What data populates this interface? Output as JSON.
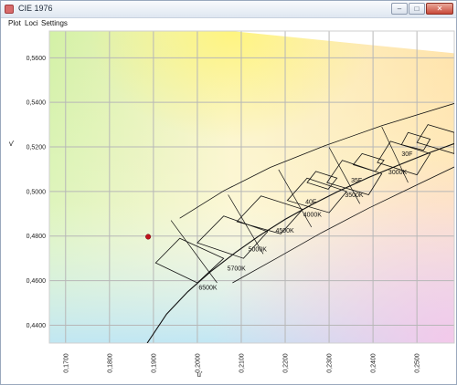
{
  "window": {
    "title": "CIE 1976",
    "minimize_glyph": "–",
    "maximize_glyph": "□",
    "close_glyph": "✕"
  },
  "menu": {
    "items": [
      "Plot",
      "Loci",
      "Settings"
    ]
  },
  "icons": {
    "app": "cie-app-icon",
    "minimize": "minimize-icon",
    "maximize": "maximize-icon",
    "close": "close-icon"
  },
  "chart_data": {
    "type": "scatter",
    "xlabel": "u'",
    "ylabel": "v'",
    "xlim": [
      0.1663,
      0.2585
    ],
    "ylim": [
      0.432,
      0.572
    ],
    "x_ticks": [
      "0,1700",
      "0,1800",
      "0,1900",
      "0,2000",
      "0,2100",
      "0,2200",
      "0,2300",
      "0,2400",
      "0,2500"
    ],
    "y_ticks": [
      "0,4400",
      "0,4600",
      "0,4800",
      "0,5000",
      "0,5200",
      "0,5400",
      "0,5600"
    ],
    "grid": true,
    "locus_label_precision": 4,
    "point": {
      "u": 0.1888,
      "v": 0.4797,
      "color": "#c0141c"
    },
    "planckian_locus": [
      [
        0.1886,
        0.432
      ],
      [
        0.193,
        0.445
      ],
      [
        0.1978,
        0.455
      ],
      [
        0.203,
        0.464
      ],
      [
        0.2086,
        0.4725
      ],
      [
        0.214,
        0.48
      ],
      [
        0.22,
        0.4875
      ],
      [
        0.226,
        0.494
      ],
      [
        0.232,
        0.5
      ],
      [
        0.239,
        0.5063
      ],
      [
        0.246,
        0.512
      ],
      [
        0.253,
        0.5175
      ],
      [
        0.2585,
        0.5215
      ]
    ],
    "band_upper": [
      [
        0.196,
        0.488
      ],
      [
        0.206,
        0.5003
      ],
      [
        0.2166,
        0.5108
      ],
      [
        0.229,
        0.5205
      ],
      [
        0.242,
        0.5295
      ],
      [
        0.2585,
        0.5395
      ]
    ],
    "band_lower": [
      [
        0.208,
        0.459
      ],
      [
        0.218,
        0.47
      ],
      [
        0.228,
        0.4812
      ],
      [
        0.239,
        0.4925
      ],
      [
        0.25,
        0.503
      ],
      [
        0.2585,
        0.511
      ]
    ],
    "isotherms": [
      [
        [
          0.194,
          0.487
        ],
        [
          0.2045,
          0.459
        ]
      ],
      [
        [
          0.207,
          0.4985
        ],
        [
          0.215,
          0.472
        ]
      ],
      [
        [
          0.2185,
          0.5098
        ],
        [
          0.226,
          0.484
        ]
      ],
      [
        [
          0.23,
          0.5198
        ],
        [
          0.237,
          0.4945
        ]
      ],
      [
        [
          0.242,
          0.529
        ],
        [
          0.248,
          0.504
        ]
      ]
    ],
    "cct_boxes": [
      {
        "label": "6500K",
        "quad": [
          [
            0.196,
            0.479
          ],
          [
            0.206,
            0.47
          ],
          [
            0.2,
            0.459
          ],
          [
            0.1905,
            0.468
          ]
        ]
      },
      {
        "label": "5700K",
        "quad": [
          [
            0.206,
            0.489
          ],
          [
            0.216,
            0.482
          ],
          [
            0.2105,
            0.47
          ],
          [
            0.2,
            0.477
          ]
        ]
      },
      {
        "label": "5000K",
        "quad": [
          [
            0.2145,
            0.498
          ],
          [
            0.224,
            0.492
          ],
          [
            0.219,
            0.481
          ],
          [
            0.209,
            0.4865
          ]
        ]
      },
      {
        "label": "4500K",
        "quad": [
          [
            0.225,
            0.506
          ],
          [
            0.234,
            0.5
          ],
          [
            0.23,
            0.4905
          ],
          [
            0.2205,
            0.496
          ]
        ]
      },
      {
        "label": "40F",
        "quad": [
          [
            0.227,
            0.509
          ],
          [
            0.2318,
            0.506
          ],
          [
            0.2298,
            0.501
          ],
          [
            0.225,
            0.504
          ]
        ]
      },
      {
        "label": "4000K",
        "quad": [
          [
            0.233,
            0.514
          ],
          [
            0.242,
            0.508
          ],
          [
            0.239,
            0.4985
          ],
          [
            0.2295,
            0.504
          ]
        ]
      },
      {
        "label": "35F",
        "quad": [
          [
            0.2375,
            0.517
          ],
          [
            0.2425,
            0.514
          ],
          [
            0.2405,
            0.509
          ],
          [
            0.2355,
            0.512
          ]
        ]
      },
      {
        "label": "3500K",
        "quad": [
          [
            0.244,
            0.5225
          ],
          [
            0.253,
            0.517
          ],
          [
            0.25,
            0.5075
          ],
          [
            0.241,
            0.513
          ]
        ]
      },
      {
        "label": "30F",
        "quad": [
          [
            0.248,
            0.5265
          ],
          [
            0.253,
            0.5235
          ],
          [
            0.2515,
            0.5185
          ],
          [
            0.2465,
            0.521
          ]
        ]
      },
      {
        "label": "3000K",
        "quad": [
          [
            0.2525,
            0.53
          ],
          [
            0.2585,
            0.5265
          ],
          [
            0.2585,
            0.517
          ],
          [
            0.25,
            0.522
          ]
        ]
      }
    ],
    "labels": [
      {
        "text": "6500K",
        "u": 0.2003,
        "v": 0.456
      },
      {
        "text": "5700K",
        "u": 0.2068,
        "v": 0.4646
      },
      {
        "text": "5000K",
        "u": 0.2116,
        "v": 0.4732
      },
      {
        "text": "4500K",
        "u": 0.2178,
        "v": 0.4815
      },
      {
        "text": "40F",
        "u": 0.2246,
        "v": 0.4945
      },
      {
        "text": "4000K",
        "u": 0.2241,
        "v": 0.4887
      },
      {
        "text": "35F",
        "u": 0.235,
        "v": 0.504
      },
      {
        "text": "3500K",
        "u": 0.2336,
        "v": 0.4975
      },
      {
        "text": "30F",
        "u": 0.2465,
        "v": 0.516
      },
      {
        "text": "3000K",
        "u": 0.2435,
        "v": 0.5077
      }
    ]
  }
}
